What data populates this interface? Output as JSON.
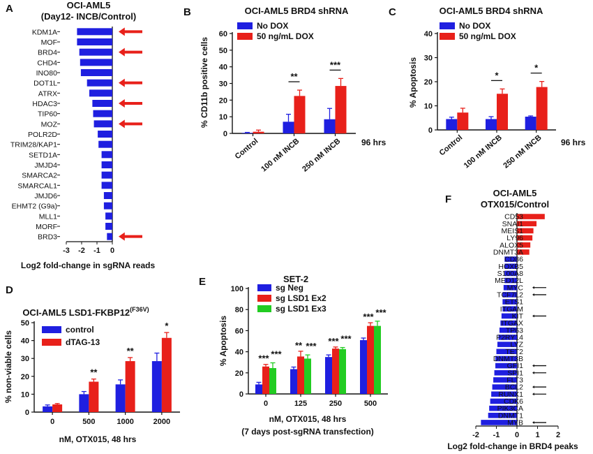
{
  "panel_letters": [
    "A",
    "B",
    "C",
    "D",
    "E",
    "F"
  ],
  "chart_data": [
    {
      "id": "A",
      "type": "bar",
      "orientation": "horizontal",
      "title": "OCI-AML5",
      "subtitle": "(Day12- INCB/Control)",
      "xlabel": "Log2 fold-change in sgRNA reads",
      "xlim": [
        -3,
        0
      ],
      "xticks": [
        "-3",
        "-2",
        "-1",
        "0"
      ],
      "categories": [
        "KDM1A",
        "MOF",
        "BRD4",
        "CHD4",
        "INO80",
        "DOT1L",
        "ATRX",
        "HDAC3",
        "TIP60",
        "MOZ",
        "POLR2D",
        "TRIM28/KAP1",
        "SETD1A",
        "JMJD4",
        "SMARCA2",
        "SMARCAL1",
        "JMJD6",
        "EHMT2 (G9a)",
        "MLL1",
        "MORF",
        "BRD3"
      ],
      "values": [
        -2.3,
        -2.3,
        -2.15,
        -2.1,
        -2.05,
        -1.65,
        -1.5,
        -1.3,
        -1.25,
        -1.2,
        -0.95,
        -0.9,
        -0.7,
        -0.7,
        -0.7,
        -0.7,
        -0.55,
        -0.55,
        -0.45,
        -0.45,
        -0.35
      ],
      "highlighted": [
        "KDM1A",
        "BRD4",
        "DOT1L",
        "HDAC3",
        "MOZ",
        "BRD3"
      ],
      "bar_color": "#1f1fe0",
      "arrow_color": "#e8201a"
    },
    {
      "id": "B",
      "type": "bar",
      "title": "OCI-AML5 BRD4 shRNA",
      "ylabel": "% CD11b positive cells",
      "ylim": [
        0,
        60
      ],
      "yticks": [
        "0",
        "10",
        "20",
        "30",
        "40",
        "50",
        "60"
      ],
      "categories": [
        "Control",
        "100 nM INCB",
        "250 nM INCB"
      ],
      "right_label": "96 hrs",
      "series": [
        {
          "name": "No DOX",
          "color": "#1f1fe0",
          "values": [
            0.3,
            7,
            8.5
          ],
          "err": [
            0.3,
            4.5,
            6.5
          ]
        },
        {
          "name": "50 ng/mL DOX",
          "color": "#e8201a",
          "values": [
            1,
            22.5,
            28.5
          ],
          "err": [
            1,
            3.5,
            4.5
          ]
        }
      ],
      "significance": [
        "",
        "**",
        "***"
      ]
    },
    {
      "id": "C",
      "type": "bar",
      "title": "OCI-AML5 BRD4 shRNA",
      "ylabel": "% Apoptosis",
      "ylim": [
        0,
        40
      ],
      "yticks": [
        "0",
        "10",
        "20",
        "30",
        "40"
      ],
      "categories": [
        "Control",
        "100 nM INCB",
        "250 nM INCB"
      ],
      "right_label": "96 hrs",
      "series": [
        {
          "name": "No DOX",
          "color": "#1f1fe0",
          "values": [
            4.5,
            4.5,
            5.5
          ],
          "err": [
            0.8,
            1,
            0.3
          ]
        },
        {
          "name": "50 ng/mL DOX",
          "color": "#e8201a",
          "values": [
            7.2,
            15,
            17.8
          ],
          "err": [
            1.8,
            2,
            2.3
          ]
        }
      ],
      "significance": [
        "",
        "*",
        "*"
      ]
    },
    {
      "id": "D",
      "type": "bar",
      "title": "OCI-AML5 LSD1-FKBP12",
      "title_superscript": "(F36V)",
      "ylabel": "% non-viable cells",
      "xlabel": "nM, OTX015, 48 hrs",
      "ylim": [
        0,
        50
      ],
      "yticks": [
        "0",
        "10",
        "20",
        "30",
        "40",
        "50"
      ],
      "categories": [
        "0",
        "500",
        "1000",
        "2000"
      ],
      "series": [
        {
          "name": "control",
          "color": "#1f1fe0",
          "values": [
            3.2,
            10,
            15.5,
            28.5
          ],
          "err": [
            0.8,
            1.5,
            2.5,
            4.5
          ]
        },
        {
          "name": "dTAG-13",
          "color": "#e8201a",
          "values": [
            4.3,
            17,
            28.5,
            41.5
          ],
          "err": [
            0.5,
            1.5,
            2,
            3
          ]
        }
      ],
      "significance": [
        "",
        "**",
        "**",
        "*"
      ]
    },
    {
      "id": "E",
      "type": "bar",
      "title": "SET-2",
      "ylabel": "% Apoptosis",
      "xlabel": "nM, OTX015, 48 hrs",
      "xlabel2": "(7 days post-sgRNA transfection)",
      "ylim": [
        0,
        100
      ],
      "yticks": [
        "0",
        "20",
        "40",
        "60",
        "80",
        "100"
      ],
      "categories": [
        "0",
        "125",
        "250",
        "500"
      ],
      "series": [
        {
          "name": "sg Neg",
          "color": "#1f1fe0",
          "values": [
            9,
            23.5,
            35,
            51
          ],
          "err": [
            2,
            2,
            2,
            2
          ]
        },
        {
          "name": "sg LSD1 Ex2",
          "color": "#e8201a",
          "values": [
            26,
            35.5,
            43,
            64.5
          ],
          "err": [
            2,
            5,
            1.5,
            3
          ]
        },
        {
          "name": "sg LSD1 Ex3",
          "color": "#22cc22",
          "values": [
            24.5,
            33.5,
            42.5,
            64.5
          ],
          "err": [
            5,
            3.5,
            1.5,
            4.5
          ]
        }
      ],
      "significance": [
        [
          "***",
          "***"
        ],
        [
          "**",
          "***"
        ],
        [
          "***",
          "***"
        ],
        [
          "***",
          "***"
        ]
      ]
    },
    {
      "id": "F",
      "type": "bar",
      "orientation": "horizontal",
      "title": "OCI-AML5",
      "subtitle": "OTX015/Control",
      "xlabel": "Log2 fold-change in BRD4 peaks",
      "xlim": [
        -2,
        2
      ],
      "xticks": [
        "-2",
        "-1",
        "0",
        "1",
        "2"
      ],
      "categories": [
        "CD53",
        "SNAI1",
        "MEIS1",
        "LY96",
        "ALOX5",
        "DNMT3A",
        "CD86",
        "HOXB5",
        "S100A8",
        "MED12L",
        "MYC",
        "TCF7L2",
        "ETS1",
        "ITGAM",
        "KIT",
        "ITGAX",
        "TP63",
        "P2RY14",
        "LYZ",
        "TET2",
        "DNMT3B",
        "GFI1",
        "SPI1",
        "FLT3",
        "BCL2",
        "RUNX1",
        "CDK6",
        "PIK3CA",
        "DNMT1",
        "MYB"
      ],
      "values": [
        1.35,
        0.95,
        0.8,
        0.75,
        0.65,
        0.6,
        -0.6,
        -0.6,
        -0.6,
        -0.6,
        -0.65,
        -0.7,
        -0.7,
        -0.7,
        -0.75,
        -0.8,
        -0.85,
        -0.9,
        -0.95,
        -1.0,
        -1.05,
        -1.05,
        -1.1,
        -1.15,
        -1.2,
        -1.25,
        -1.3,
        -1.35,
        -1.4,
        -1.75
      ],
      "highlighted": [
        "MYC",
        "TCF7L2",
        "KIT",
        "GFI1",
        "SPI1",
        "BCL2",
        "RUNX1",
        "MYB"
      ],
      "pos_color": "#e8201a",
      "neg_color": "#1f1fe0",
      "arrow_color": "#111111"
    }
  ]
}
